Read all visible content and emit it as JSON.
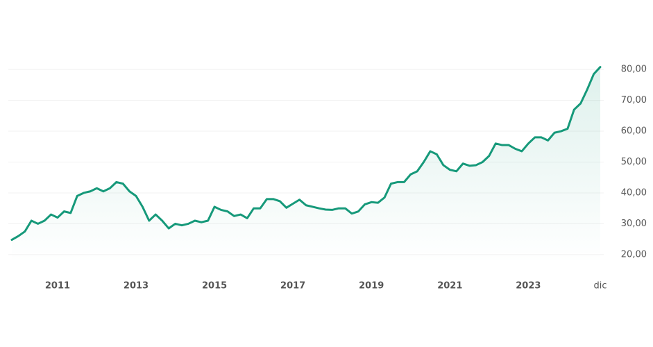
{
  "chart_data": {
    "type": "line",
    "categories": [
      null,
      null,
      null,
      null,
      null,
      null,
      null,
      "2011",
      null,
      null,
      null,
      null,
      null,
      null,
      null,
      null,
      null,
      null,
      null,
      "2013",
      null,
      null,
      null,
      null,
      null,
      null,
      null,
      null,
      null,
      null,
      null,
      "2015",
      null,
      null,
      null,
      null,
      null,
      null,
      null,
      null,
      null,
      null,
      null,
      "2017",
      null,
      null,
      null,
      null,
      null,
      null,
      null,
      null,
      null,
      null,
      null,
      "2019",
      null,
      null,
      null,
      null,
      null,
      null,
      null,
      null,
      null,
      null,
      null,
      "2021",
      null,
      null,
      null,
      null,
      null,
      null,
      null,
      null,
      null,
      null,
      null,
      "2023",
      null,
      null,
      null,
      null,
      null,
      null,
      null,
      null,
      null,
      null,
      "dic"
    ],
    "series": [
      {
        "color": "#16997a",
        "values": [
          24.8,
          26,
          27.5,
          31,
          30,
          31,
          33,
          32,
          34,
          33.5,
          39,
          40,
          40.5,
          41.5,
          40.5,
          41.5,
          43.5,
          43,
          40.5,
          39,
          35.5,
          31,
          33,
          31,
          28.5,
          30,
          29.5,
          30,
          31,
          30.5,
          31,
          35.5,
          34.5,
          34,
          32.5,
          33,
          31.8,
          35,
          35,
          38,
          38,
          37.3,
          35.2,
          36.5,
          37.8,
          36,
          35.5,
          35,
          34.6,
          34.5,
          35,
          35,
          33.3,
          34,
          36.3,
          37,
          36.8,
          38.5,
          43,
          43.5,
          43.5,
          46,
          47,
          50,
          53.5,
          52.5,
          49,
          47.5,
          47,
          49.5,
          48.8,
          49,
          50,
          52,
          56,
          55.5,
          55.5,
          54.3,
          53.5,
          56,
          58,
          58,
          57,
          59.5,
          60,
          60.8,
          67,
          69,
          73.5,
          78.5,
          80.8
        ]
      }
    ],
    "ylim": [
      17.5,
      82.5
    ],
    "yticks": [
      {
        "value": 20,
        "label": "20,00"
      },
      {
        "value": 30,
        "label": "30,00"
      },
      {
        "value": 40,
        "label": "40,00"
      },
      {
        "value": 50,
        "label": "50,00"
      },
      {
        "value": 60,
        "label": "60,00"
      },
      {
        "value": 70,
        "label": "70,00"
      },
      {
        "value": 80,
        "label": "80,00"
      }
    ],
    "grid": true
  }
}
